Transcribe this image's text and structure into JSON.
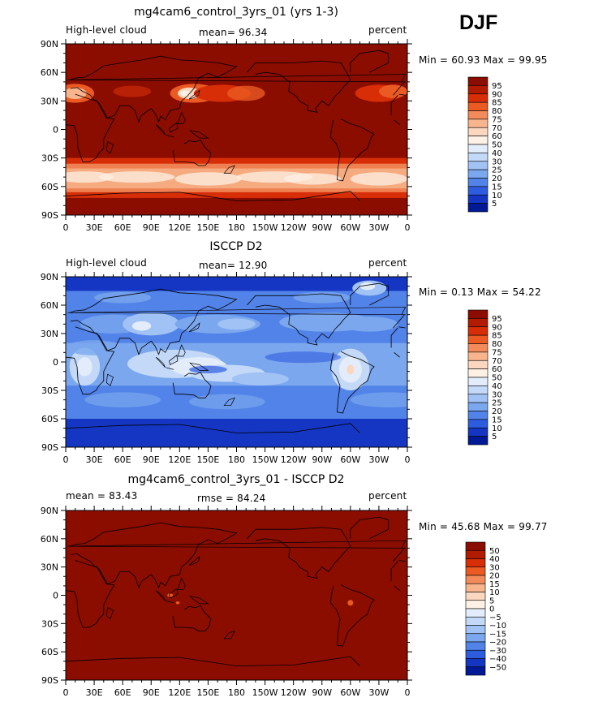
{
  "season": "DJF",
  "colors": {
    "background": "#ffffff",
    "text": "#000000",
    "map_bg": "#8b0d00",
    "coast": "#000000"
  },
  "chart_data": [
    {
      "type": "heatmap",
      "title": "mg4cam6_control_3yrs_01 (yrs 1-3)",
      "left_label": "High-level cloud",
      "center_label": "mean=  96.34",
      "right_label": "percent",
      "min_label": "Min =",
      "min_value": "60.93",
      "max_label": "Max =",
      "max_value": "99.95",
      "xticks": [
        "0",
        "30E",
        "60E",
        "90E",
        "120E",
        "150E",
        "180",
        "150W",
        "120W",
        "90W",
        "60W",
        "30W",
        "0"
      ],
      "yticks": [
        "90N",
        "60N",
        "30N",
        "0",
        "30S",
        "60S",
        "90S"
      ],
      "xlim": [
        0,
        360
      ],
      "ylim": [
        -90,
        90
      ],
      "colorbar_labels": [
        "95",
        "90",
        "85",
        "80",
        "75",
        "70",
        "60",
        "50",
        "40",
        "30",
        "25",
        "20",
        "15",
        "10",
        "5"
      ],
      "colorbar_colors": [
        "#8b0d00",
        "#b11b00",
        "#d72e08",
        "#ea5a22",
        "#f28a5a",
        "#f8b48c",
        "#fcd7c0",
        "#fdf0e4",
        "#e3ecfa",
        "#c3d9f7",
        "#a1c2f4",
        "#7ba7ee",
        "#5283e8",
        "#2e5cdf",
        "#1536c2",
        "#001a96"
      ],
      "field": "model"
    },
    {
      "type": "heatmap",
      "title": "ISCCP D2",
      "left_label": "High-level cloud",
      "center_label": "mean=  12.90",
      "right_label": "percent",
      "min_label": "Min =",
      "min_value": "0.13",
      "max_label": "Max =",
      "max_value": "54.22",
      "xticks": [
        "0",
        "30E",
        "60E",
        "90E",
        "120E",
        "150E",
        "180",
        "150W",
        "120W",
        "90W",
        "60W",
        "30W",
        "0"
      ],
      "yticks": [
        "90N",
        "60N",
        "30N",
        "0",
        "30S",
        "60S",
        "90S"
      ],
      "xlim": [
        0,
        360
      ],
      "ylim": [
        -90,
        90
      ],
      "colorbar_labels": [
        "95",
        "90",
        "85",
        "80",
        "75",
        "70",
        "60",
        "50",
        "40",
        "30",
        "25",
        "20",
        "15",
        "10",
        "5"
      ],
      "colorbar_colors": [
        "#8b0d00",
        "#b11b00",
        "#d72e08",
        "#ea5a22",
        "#f28a5a",
        "#f8b48c",
        "#fcd7c0",
        "#fdf0e4",
        "#e3ecfa",
        "#c3d9f7",
        "#a1c2f4",
        "#7ba7ee",
        "#5283e8",
        "#2e5cdf",
        "#1536c2",
        "#001a96"
      ],
      "field": "obs"
    },
    {
      "type": "heatmap",
      "title": "mg4cam6_control_3yrs_01 - ISCCP D2",
      "left_label": "mean =  83.43",
      "center_label": "rmse =  84.24",
      "right_label": "percent",
      "min_label": "Min =",
      "min_value": "45.68",
      "max_label": "Max =",
      "max_value": "99.77",
      "xticks": [
        "0",
        "30E",
        "60E",
        "90E",
        "120E",
        "150E",
        "180",
        "150W",
        "120W",
        "90W",
        "60W",
        "30W",
        "0"
      ],
      "yticks": [
        "90N",
        "60N",
        "30N",
        "0",
        "30S",
        "60S",
        "90S"
      ],
      "xlim": [
        0,
        360
      ],
      "ylim": [
        -90,
        90
      ],
      "colorbar_labels": [
        "50",
        "40",
        "30",
        "20",
        "15",
        "10",
        "5",
        "0",
        "−5",
        "−10",
        "−15",
        "−20",
        "−30",
        "−40",
        "−50"
      ],
      "colorbar_colors": [
        "#8b0d00",
        "#b11b00",
        "#d72e08",
        "#ea5a22",
        "#f28a5a",
        "#f8b48c",
        "#fcd7c0",
        "#fdf0e4",
        "#e3ecfa",
        "#c3d9f7",
        "#a1c2f4",
        "#7ba7ee",
        "#5283e8",
        "#2e5cdf",
        "#1536c2",
        "#001a96"
      ],
      "field": "diff"
    }
  ]
}
